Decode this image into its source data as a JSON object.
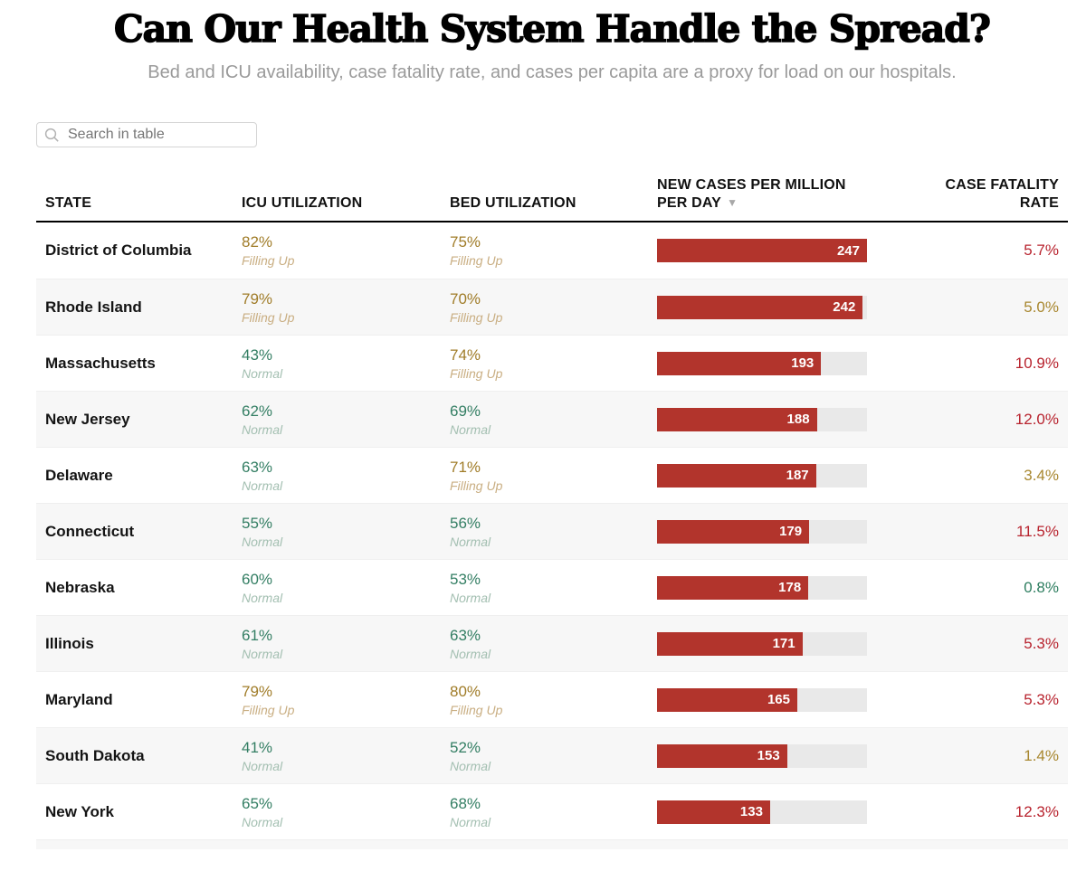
{
  "page": {
    "title": "Can Our Health System Handle the Spread?",
    "subtitle": "Bed and ICU availability, case fatality rate, and cases per capita are a proxy for load on our hospitals."
  },
  "search": {
    "placeholder": "Search in table",
    "icon": "magnifier"
  },
  "colors": {
    "bar_fill": "#b2342c",
    "bar_track": "#e9e9e9",
    "filling_value": "#a07c28",
    "filling_label": "#c9ae82",
    "normal_value": "#337e63",
    "normal_label": "#a3bfb1",
    "fatality_high": "#b8232e",
    "fatality_mid": "#a8872f",
    "fatality_low": "#2e7e60",
    "row_alt_background": "#f7f7f7"
  },
  "chart_data": {
    "type": "table",
    "title": "Can Our Health System Handle the Spread?",
    "subtitle": "Bed and ICU availability, case fatality rate, and cases per capita are a proxy for load on our hospitals.",
    "sort": {
      "column": "new_cases_per_million_per_day",
      "direction": "desc",
      "icon": "▼"
    },
    "bar_max": 247,
    "columns": [
      {
        "key": "state",
        "label_lines": [
          "STATE"
        ],
        "align": "left"
      },
      {
        "key": "icu",
        "label_lines": [
          "ICU UTILIZATION"
        ],
        "align": "left"
      },
      {
        "key": "bed",
        "label_lines": [
          "BED UTILIZATION"
        ],
        "align": "left"
      },
      {
        "key": "cases",
        "label_lines": [
          "NEW CASES PER MILLION",
          "PER DAY"
        ],
        "align": "left",
        "sort_icon": "▼"
      },
      {
        "key": "fatality",
        "label_lines": [
          "CASE FATALITY",
          "RATE"
        ],
        "align": "right"
      }
    ],
    "rows": [
      {
        "state": "District of Columbia",
        "icu_value": "82%",
        "icu_status": "Filling Up",
        "icu_level": "filling",
        "bed_value": "75%",
        "bed_status": "Filling Up",
        "bed_level": "filling",
        "new_cases_per_million_per_day": 247,
        "case_fatality_rate": "5.7%",
        "fatality_level": "high"
      },
      {
        "state": "Rhode Island",
        "icu_value": "79%",
        "icu_status": "Filling Up",
        "icu_level": "filling",
        "bed_value": "70%",
        "bed_status": "Filling Up",
        "bed_level": "filling",
        "new_cases_per_million_per_day": 242,
        "case_fatality_rate": "5.0%",
        "fatality_level": "mid"
      },
      {
        "state": "Massachusetts",
        "icu_value": "43%",
        "icu_status": "Normal",
        "icu_level": "normal",
        "bed_value": "74%",
        "bed_status": "Filling Up",
        "bed_level": "filling",
        "new_cases_per_million_per_day": 193,
        "case_fatality_rate": "10.9%",
        "fatality_level": "high"
      },
      {
        "state": "New Jersey",
        "icu_value": "62%",
        "icu_status": "Normal",
        "icu_level": "normal",
        "bed_value": "69%",
        "bed_status": "Normal",
        "bed_level": "normal",
        "new_cases_per_million_per_day": 188,
        "case_fatality_rate": "12.0%",
        "fatality_level": "high"
      },
      {
        "state": "Delaware",
        "icu_value": "63%",
        "icu_status": "Normal",
        "icu_level": "normal",
        "bed_value": "71%",
        "bed_status": "Filling Up",
        "bed_level": "filling",
        "new_cases_per_million_per_day": 187,
        "case_fatality_rate": "3.4%",
        "fatality_level": "mid"
      },
      {
        "state": "Connecticut",
        "icu_value": "55%",
        "icu_status": "Normal",
        "icu_level": "normal",
        "bed_value": "56%",
        "bed_status": "Normal",
        "bed_level": "normal",
        "new_cases_per_million_per_day": 179,
        "case_fatality_rate": "11.5%",
        "fatality_level": "high"
      },
      {
        "state": "Nebraska",
        "icu_value": "60%",
        "icu_status": "Normal",
        "icu_level": "normal",
        "bed_value": "53%",
        "bed_status": "Normal",
        "bed_level": "normal",
        "new_cases_per_million_per_day": 178,
        "case_fatality_rate": "0.8%",
        "fatality_level": "low"
      },
      {
        "state": "Illinois",
        "icu_value": "61%",
        "icu_status": "Normal",
        "icu_level": "normal",
        "bed_value": "63%",
        "bed_status": "Normal",
        "bed_level": "normal",
        "new_cases_per_million_per_day": 171,
        "case_fatality_rate": "5.3%",
        "fatality_level": "high"
      },
      {
        "state": "Maryland",
        "icu_value": "79%",
        "icu_status": "Filling Up",
        "icu_level": "filling",
        "bed_value": "80%",
        "bed_status": "Filling Up",
        "bed_level": "filling",
        "new_cases_per_million_per_day": 165,
        "case_fatality_rate": "5.3%",
        "fatality_level": "high"
      },
      {
        "state": "South Dakota",
        "icu_value": "41%",
        "icu_status": "Normal",
        "icu_level": "normal",
        "bed_value": "52%",
        "bed_status": "Normal",
        "bed_level": "normal",
        "new_cases_per_million_per_day": 153,
        "case_fatality_rate": "1.4%",
        "fatality_level": "mid"
      },
      {
        "state": "New York",
        "icu_value": "65%",
        "icu_status": "Normal",
        "icu_level": "normal",
        "bed_value": "68%",
        "bed_status": "Normal",
        "bed_level": "normal",
        "new_cases_per_million_per_day": 133,
        "case_fatality_rate": "12.3%",
        "fatality_level": "high"
      }
    ]
  }
}
